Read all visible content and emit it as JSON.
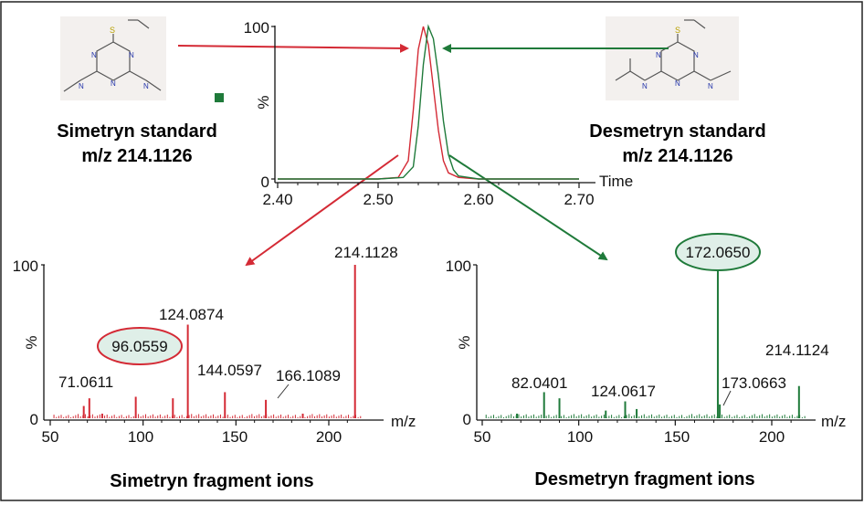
{
  "colors": {
    "simetryn": "#d42a35",
    "desmetryn": "#1f7a3a",
    "axis": "#111111",
    "highlight_fill": "#dfefe8"
  },
  "labels": {
    "simetryn_standard": "Simetryn standard",
    "desmetryn_standard": "Desmetryn standard",
    "mz_left": "m/z 214.1126",
    "mz_right": "m/z 214.1126",
    "simetryn_fragments": "Simetryn fragment ions",
    "desmetryn_fragments": "Desmetryn fragment ions"
  },
  "chart_data": [
    {
      "type": "line",
      "name": "chromatogram",
      "xlabel": "Time",
      "ylabel": "%",
      "xlim": [
        2.4,
        2.7
      ],
      "ylim": [
        0,
        100
      ],
      "x_ticks": [
        "2.40",
        "2.50",
        "2.60",
        "2.70"
      ],
      "y_ticks": [
        "0",
        "100"
      ],
      "series": [
        {
          "color": "#d42a35",
          "x": [
            2.4,
            2.5,
            2.52,
            2.53,
            2.535,
            2.54,
            2.545,
            2.55,
            2.555,
            2.56,
            2.565,
            2.57,
            2.58,
            2.6,
            2.7
          ],
          "y": [
            0,
            0,
            1,
            12,
            45,
            85,
            100,
            88,
            60,
            32,
            12,
            4,
            1,
            0,
            0
          ]
        },
        {
          "color": "#1f7a3a",
          "x": [
            2.4,
            2.5,
            2.525,
            2.535,
            2.54,
            2.545,
            2.55,
            2.555,
            2.56,
            2.565,
            2.57,
            2.575,
            2.58,
            2.6,
            2.7
          ],
          "y": [
            0,
            0,
            1,
            8,
            35,
            75,
            100,
            92,
            68,
            38,
            16,
            6,
            2,
            0,
            0
          ]
        }
      ]
    },
    {
      "type": "bar",
      "name": "simetryn-spectrum",
      "xlabel": "m/z",
      "ylabel": "%",
      "xlim": [
        50,
        220
      ],
      "ylim": [
        0,
        100
      ],
      "x_ticks": [
        "50",
        "100",
        "150",
        "200"
      ],
      "y_ticks": [
        "0",
        "100"
      ],
      "x": [
        68.05,
        71.0611,
        78.0,
        96.0559,
        116.05,
        124.0874,
        144.0597,
        166.1089,
        186.0,
        214.1128
      ],
      "y": [
        8,
        13,
        3,
        14,
        13,
        61,
        17,
        12,
        3,
        100
      ],
      "annotations": [
        "71.0611",
        "96.0559",
        "124.0874",
        "144.0597",
        "166.1089",
        "214.1128"
      ],
      "circled": "96.0559"
    },
    {
      "type": "bar",
      "name": "desmetryn-spectrum",
      "xlabel": "m/z",
      "ylabel": "%",
      "xlim": [
        50,
        220
      ],
      "ylim": [
        0,
        100
      ],
      "x_ticks": [
        "50",
        "100",
        "150",
        "200"
      ],
      "y_ticks": [
        "0",
        "100"
      ],
      "x": [
        68.0,
        82.0401,
        90.0,
        114.0,
        124.0617,
        130.0,
        172.065,
        173.0663,
        214.1124
      ],
      "y": [
        3,
        17,
        13,
        5,
        11,
        6,
        100,
        9,
        21
      ],
      "annotations": [
        "82.0401",
        "124.0617",
        "172.0650",
        "173.0663",
        "214.1124"
      ],
      "circled": "172.0650"
    }
  ]
}
